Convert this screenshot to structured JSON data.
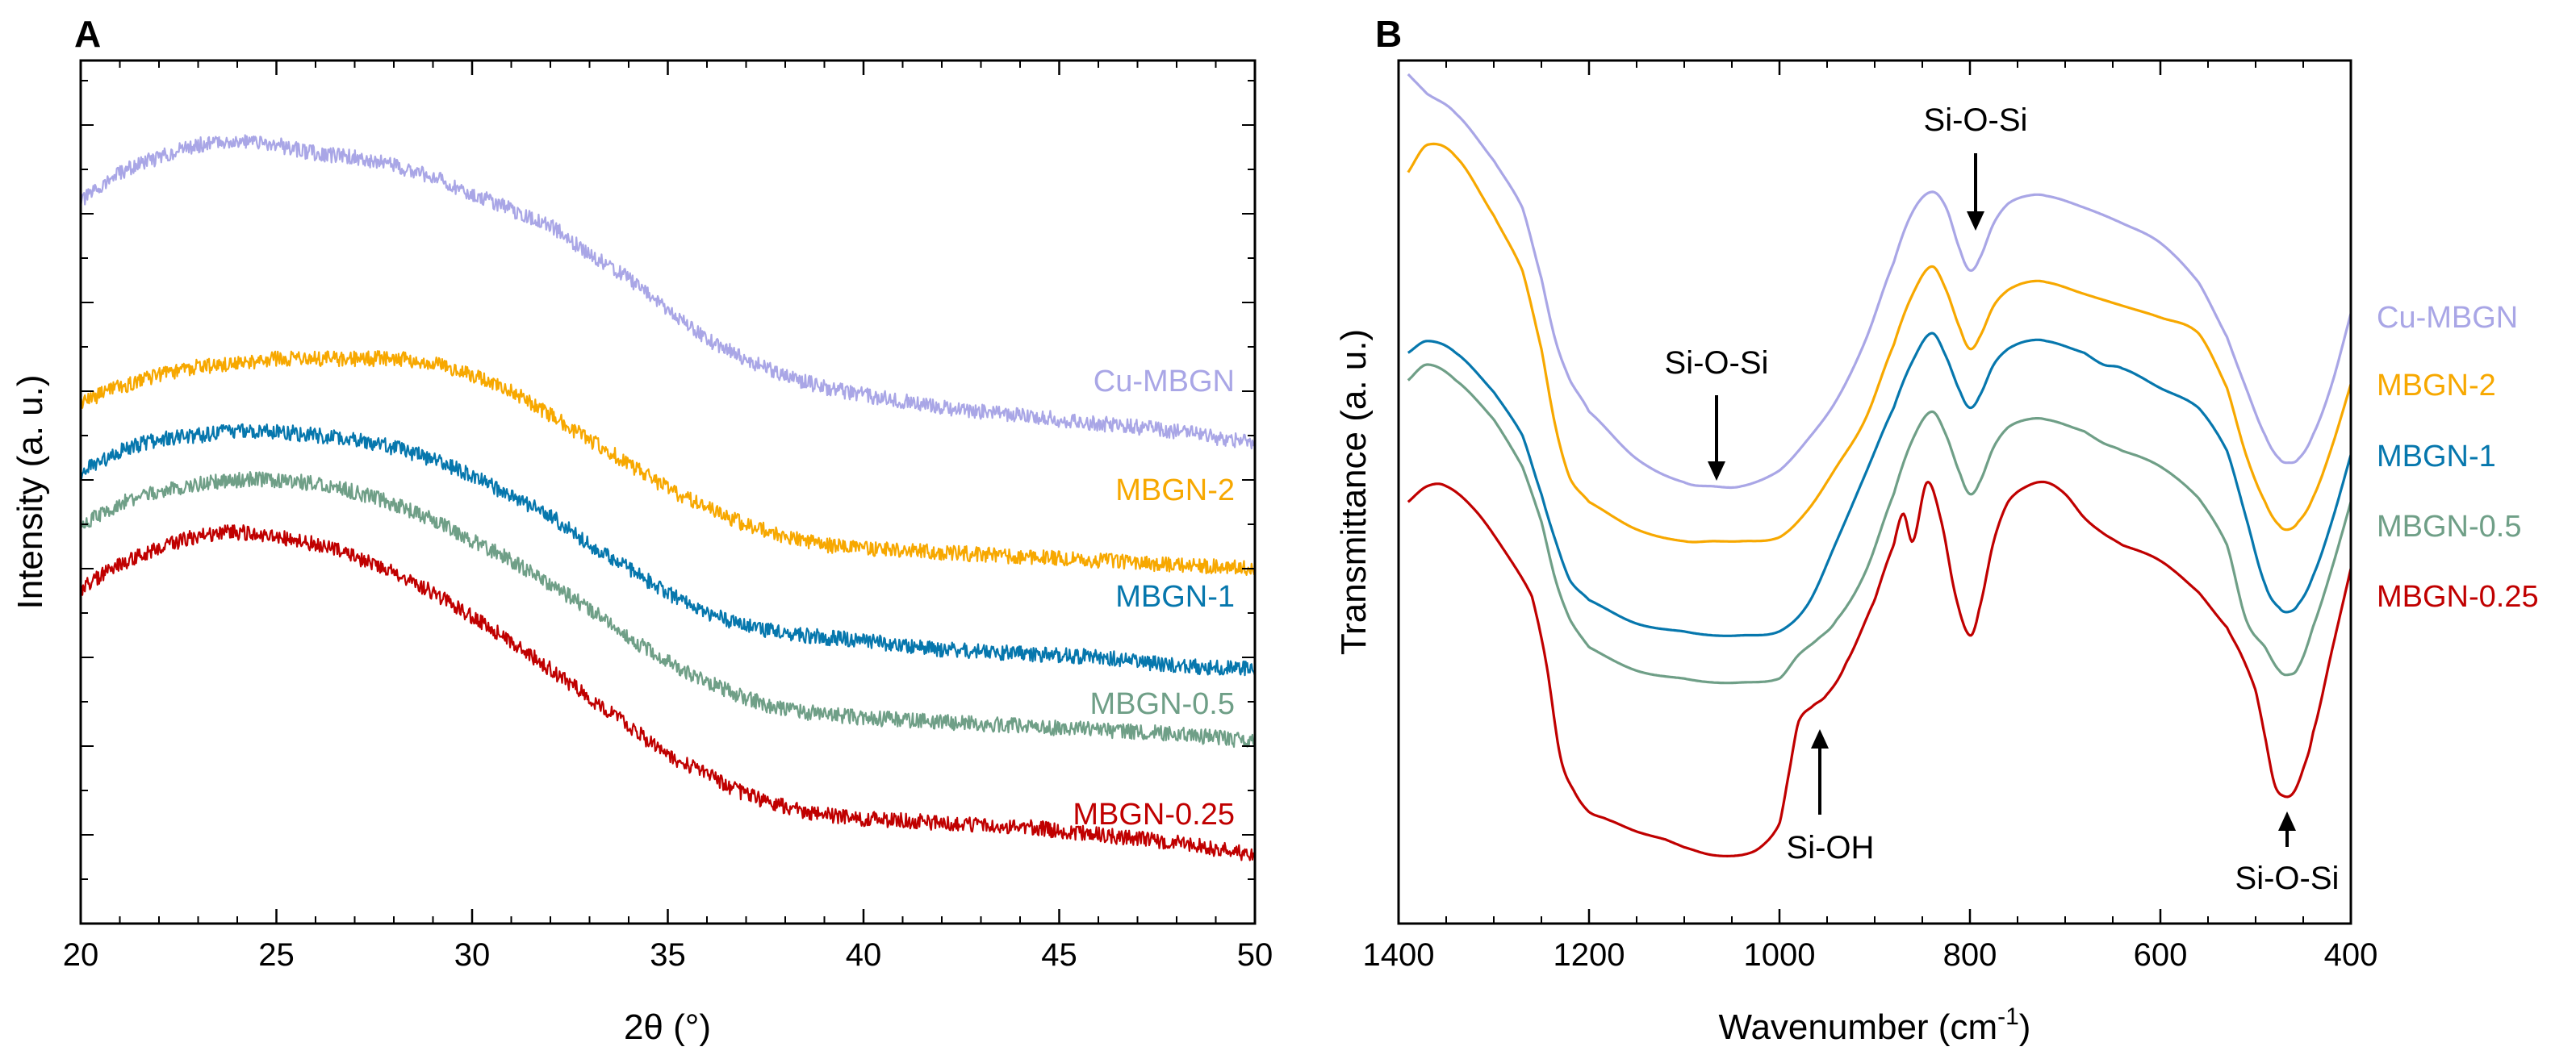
{
  "figure": {
    "panels": [
      {
        "label": "A"
      },
      {
        "label": "B"
      }
    ]
  },
  "chart_data": [
    {
      "panel": "A",
      "type": "line",
      "title": "",
      "xlabel": "2θ (°)",
      "ylabel": "Intensity (a. u.)",
      "xlim": [
        20,
        50
      ],
      "ylim": [
        0,
        100
      ],
      "x_ticks": [
        20,
        25,
        30,
        35,
        40,
        45,
        50
      ],
      "y_tick_labels_shown": false,
      "noisy": true,
      "series": [
        {
          "name": "Cu-MBGN",
          "color": "#a9a6e6",
          "x": [
            20,
            21,
            22,
            23,
            24,
            25,
            26,
            27,
            28,
            29,
            30,
            31,
            32,
            33,
            34,
            35,
            36,
            37,
            38,
            39,
            40,
            42,
            44,
            46,
            48,
            50
          ],
          "values": [
            85,
            88.5,
            90.5,
            92,
            92.5,
            92,
            91,
            90.5,
            89.5,
            88,
            86,
            84,
            82,
            78.5,
            75.5,
            71.5,
            68,
            65.5,
            63.5,
            62,
            61,
            59.5,
            58.5,
            57.5,
            56.5,
            55
          ]
        },
        {
          "name": "MBGN-2",
          "color": "#f7a800",
          "x": [
            20,
            21,
            22,
            23,
            24,
            25,
            26,
            27,
            28,
            29,
            30,
            31,
            32,
            33,
            34,
            35,
            36,
            37,
            38,
            39,
            40,
            42,
            44,
            46,
            48,
            50
          ],
          "values": [
            60,
            62,
            63.5,
            64.5,
            65,
            65.5,
            65.5,
            65.5,
            65.5,
            65,
            63.5,
            61.5,
            58.5,
            55.5,
            52.5,
            49.5,
            47,
            45,
            43.5,
            42.5,
            42,
            41.5,
            41,
            40.5,
            40,
            39.5
          ]
        },
        {
          "name": "MBGN-1",
          "color": "#0677ad",
          "x": [
            20,
            21,
            22,
            23,
            24,
            25,
            26,
            27,
            28,
            29,
            30,
            31,
            32,
            33,
            34,
            35,
            36,
            37,
            38,
            39,
            40,
            42,
            44,
            46,
            48,
            50
          ],
          "values": [
            51.5,
            54,
            55.5,
            56,
            56.5,
            56.5,
            56,
            55.5,
            54.5,
            53,
            51,
            48.5,
            46,
            42.5,
            39.5,
            36.5,
            34,
            32.5,
            31.5,
            31,
            30.5,
            29.5,
            29,
            28.5,
            27.5,
            27
          ]
        },
        {
          "name": "MBGN-0.5",
          "color": "#6f9f87",
          "x": [
            20,
            21,
            22,
            23,
            24,
            25,
            26,
            27,
            28,
            29,
            30,
            31,
            32,
            33,
            34,
            35,
            36,
            37,
            38,
            39,
            40,
            42,
            44,
            46,
            48,
            50
          ],
          "values": [
            45,
            47.5,
            49,
            50,
            50.5,
            50.5,
            50,
            49,
            47.5,
            45.5,
            43,
            40.5,
            37.5,
            34.5,
            31,
            28,
            25.5,
            23.5,
            22,
            21.5,
            21,
            20.5,
            20,
            19.5,
            19,
            18
          ]
        },
        {
          "name": "MBGN-0.25",
          "color": "#c00000",
          "x": [
            20,
            21,
            22,
            23,
            24,
            25,
            26,
            27,
            28,
            29,
            30,
            31,
            32,
            33,
            34,
            35,
            36,
            37,
            38,
            39,
            40,
            42,
            44,
            46,
            48,
            50
          ],
          "values": [
            37,
            40,
            42,
            43.5,
            44,
            43.5,
            42.5,
            41,
            39,
            36.5,
            33.5,
            30.5,
            27,
            23.5,
            20,
            16.5,
            14,
            11.5,
            10,
            9,
            8.5,
            8,
            7.5,
            6.5,
            5.5,
            4
          ]
        }
      ]
    },
    {
      "panel": "B",
      "type": "line",
      "title": "",
      "xlabel": "Wavenumber (cm",
      "xlabel_superscript": "-1",
      "xlabel_suffix": ")",
      "ylabel": "Transmittance (a. u.)",
      "xlim": [
        1400,
        400
      ],
      "x_reversed": true,
      "ylim": [
        0,
        100
      ],
      "x_ticks": [
        1400,
        1200,
        1000,
        800,
        600,
        400
      ],
      "y_tick_labels_shown": false,
      "series": [
        {
          "name": "Cu-MBGN",
          "color": "#a9a6e6",
          "x": [
            1390,
            1370,
            1340,
            1300,
            1270,
            1250,
            1235,
            1220,
            1200,
            1150,
            1100,
            1070,
            1040,
            1000,
            970,
            940,
            910,
            880,
            860,
            840,
            825,
            810,
            800,
            790,
            775,
            760,
            740,
            720,
            680,
            640,
            600,
            560,
            530,
            510,
            490,
            475,
            465,
            455,
            440,
            420,
            400
          ],
          "values": [
            100,
            97.5,
            95,
            89,
            83,
            74,
            66,
            61,
            57,
            51,
            48,
            47.5,
            47.5,
            49.5,
            53.5,
            58.5,
            66,
            76,
            82.5,
            85,
            83,
            77.5,
            75,
            76.5,
            81,
            83.5,
            84.5,
            84.5,
            83,
            81,
            78.5,
            73.5,
            66.5,
            60,
            54,
            51,
            50.5,
            51,
            54,
            60.5,
            69.5
          ]
        },
        {
          "name": "MBGN-2",
          "color": "#f7a800",
          "x": [
            1390,
            1370,
            1340,
            1300,
            1270,
            1250,
            1235,
            1220,
            1200,
            1150,
            1100,
            1070,
            1040,
            1000,
            970,
            940,
            910,
            880,
            860,
            840,
            825,
            810,
            800,
            790,
            775,
            760,
            740,
            720,
            680,
            640,
            600,
            560,
            530,
            510,
            490,
            475,
            465,
            455,
            440,
            420,
            400
          ],
          "values": [
            87.5,
            91,
            89.5,
            82,
            75,
            65,
            55,
            48.5,
            45.5,
            42,
            40.5,
            40.5,
            40.5,
            41,
            44.5,
            50,
            56,
            65.5,
            72,
            75.5,
            72.5,
            67.5,
            65,
            66.5,
            70.5,
            72.5,
            73.5,
            73.5,
            72,
            70.5,
            69,
            67,
            60,
            51.5,
            45.5,
            42.5,
            42,
            43,
            46,
            52.5,
            60.5
          ]
        },
        {
          "name": "MBGN-1",
          "color": "#0677ad",
          "x": [
            1390,
            1370,
            1340,
            1300,
            1270,
            1250,
            1235,
            1220,
            1200,
            1150,
            1100,
            1070,
            1040,
            1000,
            970,
            940,
            910,
            880,
            860,
            840,
            825,
            810,
            800,
            790,
            775,
            760,
            740,
            720,
            680,
            660,
            640,
            600,
            560,
            530,
            510,
            490,
            475,
            465,
            455,
            440,
            420,
            400
          ],
          "values": [
            64.5,
            66,
            64.5,
            59.5,
            54,
            46.5,
            40.5,
            35.5,
            33,
            30,
            29,
            28.5,
            28.5,
            29,
            32.5,
            40.5,
            49,
            57.5,
            63.5,
            67,
            64,
            59.5,
            57.5,
            59,
            63,
            65,
            66,
            66,
            64.5,
            63,
            62.5,
            60,
            57.5,
            52,
            43.5,
            35,
            32,
            31.5,
            32.5,
            36,
            43,
            51.5
          ]
        },
        {
          "name": "MBGN-0.5",
          "color": "#6f9f87",
          "x": [
            1390,
            1370,
            1340,
            1300,
            1270,
            1250,
            1235,
            1220,
            1200,
            1150,
            1100,
            1070,
            1040,
            1000,
            980,
            960,
            940,
            910,
            880,
            860,
            840,
            825,
            810,
            800,
            790,
            775,
            760,
            740,
            720,
            680,
            660,
            640,
            600,
            560,
            530,
            510,
            490,
            475,
            465,
            455,
            440,
            420,
            400
          ],
          "values": [
            61,
            63,
            61,
            56,
            50,
            43,
            35.5,
            30.5,
            27,
            24,
            23,
            22.5,
            22.5,
            23,
            26,
            28,
            30.5,
            36.5,
            46.5,
            53.5,
            57,
            54,
            49,
            46.5,
            48,
            52.5,
            55,
            56,
            56,
            54.5,
            53,
            52,
            50,
            46,
            40,
            30.5,
            27,
            24,
            23.5,
            24.5,
            29.5,
            37,
            45.5
          ]
        },
        {
          "name": "MBGN-0.25",
          "color": "#c00000",
          "x": [
            1390,
            1370,
            1350,
            1320,
            1290,
            1260,
            1245,
            1230,
            1215,
            1200,
            1180,
            1150,
            1120,
            1100,
            1070,
            1040,
            1020,
            1000,
            990,
            980,
            965,
            950,
            930,
            900,
            880,
            870,
            860,
            845,
            830,
            815,
            800,
            790,
            775,
            760,
            740,
            720,
            700,
            680,
            660,
            640,
            600,
            560,
            530,
            515,
            500,
            490,
            480,
            470,
            460,
            450,
            440,
            420,
            400
          ],
          "values": [
            45.5,
            47.5,
            47.5,
            44.5,
            39.5,
            33.5,
            25,
            13,
            8.5,
            6,
            5,
            3.5,
            2.5,
            1.5,
            0.5,
            0.5,
            1.5,
            4.5,
            11,
            17.5,
            19.5,
            21,
            25,
            33,
            40,
            44,
            40.5,
            48,
            43,
            33.5,
            28.5,
            32,
            40.5,
            45.5,
            47.5,
            48,
            46.5,
            43.5,
            41.5,
            40,
            38,
            34,
            29.5,
            26,
            21.5,
            15.5,
            9.5,
            8,
            8.5,
            11.5,
            16,
            26.5,
            37
          ]
        }
      ],
      "annotations": [
        {
          "text": "Si-O-Si",
          "arrow": "down"
        },
        {
          "text": "Si-O-Si",
          "arrow": "down"
        },
        {
          "text": "Si-OH",
          "arrow": "up"
        },
        {
          "text": "Si-O-Si",
          "arrow": "up"
        }
      ]
    }
  ]
}
